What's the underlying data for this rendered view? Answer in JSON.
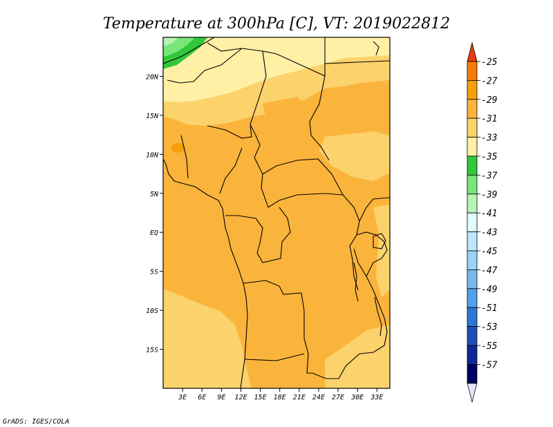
{
  "title": "Temperature at 300hPa [C], VT: 2019022812",
  "credit": "GrADS: IGES/COLA",
  "map": {
    "lon_range": [
      0,
      35
    ],
    "lat_range": [
      -20,
      25
    ],
    "lat_ticks": [
      {
        "value": 20,
        "label": "20N"
      },
      {
        "value": 15,
        "label": "15N"
      },
      {
        "value": 10,
        "label": "10N"
      },
      {
        "value": 5,
        "label": "5N"
      },
      {
        "value": 0,
        "label": "EQ"
      },
      {
        "value": -5,
        "label": "5S"
      },
      {
        "value": -10,
        "label": "10S"
      },
      {
        "value": -15,
        "label": "15S"
      }
    ],
    "lon_ticks": [
      {
        "value": 3,
        "label": "3E"
      },
      {
        "value": 6,
        "label": "6E"
      },
      {
        "value": 9,
        "label": "9E"
      },
      {
        "value": 12,
        "label": "12E"
      },
      {
        "value": 15,
        "label": "15E"
      },
      {
        "value": 18,
        "label": "18E"
      },
      {
        "value": 21,
        "label": "21E"
      },
      {
        "value": 24,
        "label": "24E"
      },
      {
        "value": 27,
        "label": "27E"
      },
      {
        "value": 30,
        "label": "30E"
      },
      {
        "value": 33,
        "label": "33E"
      }
    ]
  },
  "colorbar": {
    "labels": [
      "-25",
      "-27",
      "-29",
      "-31",
      "-33",
      "-35",
      "-37",
      "-39",
      "-41",
      "-43",
      "-45",
      "-47",
      "-49",
      "-51",
      "-53",
      "-55",
      "-57"
    ],
    "colors": [
      "#e63c10",
      "#fa7d00",
      "#f5a00a",
      "#fab43c",
      "#fbd26b",
      "#fff0a5",
      "#32c83c",
      "#78e678",
      "#b4f5b4",
      "#e1fcfc",
      "#bee6fa",
      "#9bd2f5",
      "#7ab9f0",
      "#55a0eb",
      "#2d78d2",
      "#1e50b4",
      "#0f2896",
      "#000064",
      "#e6e6fa"
    ]
  }
}
